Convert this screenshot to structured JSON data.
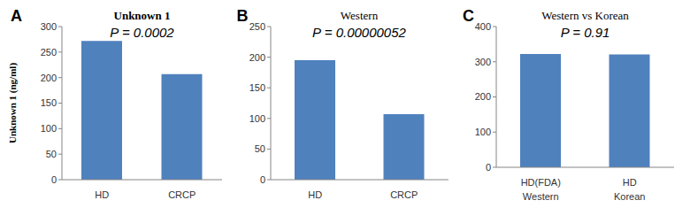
{
  "chart_data": [
    {
      "type": "bar",
      "panel_label": "A",
      "title": "Unknown 1",
      "y_label": "Unknown 1 (ng/ml)",
      "categories": [
        "HD",
        "CRCP"
      ],
      "values": [
        272,
        207
      ],
      "color": "#4f81bd",
      "ylim": [
        0,
        300
      ],
      "yticks": [
        0,
        50,
        100,
        150,
        200,
        250,
        300
      ],
      "grid": false,
      "annotations": [
        "P = 0.0002"
      ]
    },
    {
      "type": "bar",
      "panel_label": "B",
      "title": "Western",
      "categories": [
        "HD",
        "CRCP"
      ],
      "values": [
        195,
        107
      ],
      "color": "#4f81bd",
      "ylim": [
        0,
        250
      ],
      "yticks": [
        0,
        50,
        100,
        150,
        200,
        250
      ],
      "grid": false,
      "annotations": [
        "P = 0.00000052"
      ]
    },
    {
      "type": "bar",
      "panel_label": "C",
      "title": "Western vs Korean",
      "categories": [
        "HD(FDA)",
        "HD"
      ],
      "subcategories": [
        "Western",
        "Korean"
      ],
      "values": [
        322,
        321
      ],
      "color": "#4f81bd",
      "ylim": [
        0,
        400
      ],
      "yticks": [
        0,
        100,
        200,
        300,
        400
      ],
      "grid": false,
      "annotations": [
        "P = 0.91"
      ]
    }
  ]
}
